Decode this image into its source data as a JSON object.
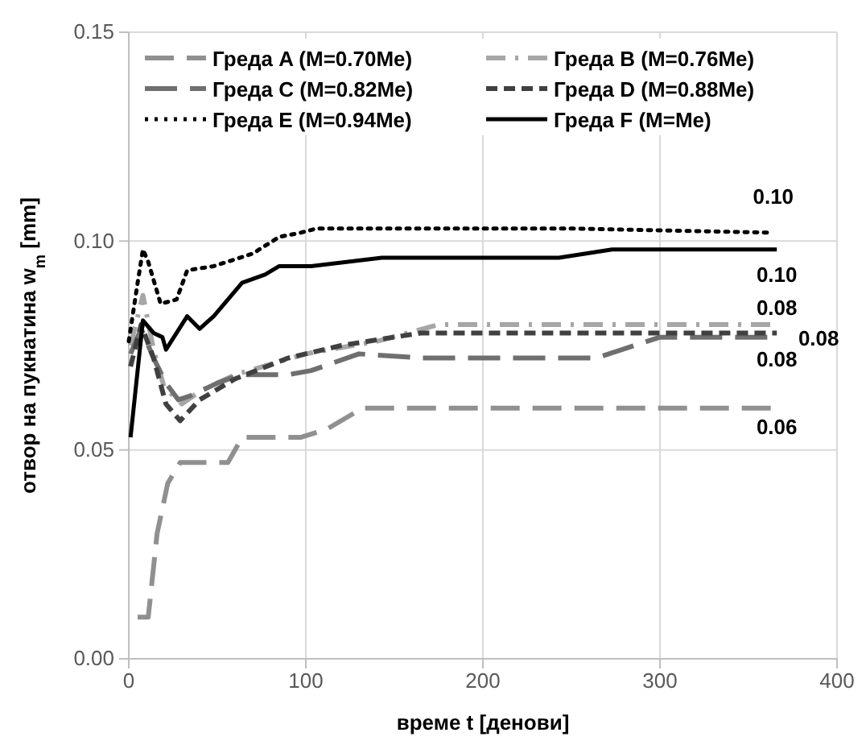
{
  "chart_data": {
    "type": "line",
    "xlabel": "време t [денови]",
    "ylabel": "отвор на пукнатина w$_{m}$ [mm]",
    "xlim": [
      0,
      400
    ],
    "xticks": [
      0,
      100,
      200,
      300,
      400
    ],
    "ylim": [
      0,
      0.15
    ],
    "yticks": [
      {
        "value": 0,
        "label": "0.00"
      },
      {
        "value": 0.05,
        "label": "0.05"
      },
      {
        "value": 0.1,
        "label": "0.10"
      },
      {
        "value": 0.15,
        "label": "0.15"
      }
    ],
    "grid": true,
    "legend": "top",
    "marker": "none",
    "series": [
      {
        "name": "Греда A (M=0.70Me)",
        "color": "#909090",
        "line_style": "dashed",
        "x": [
          5,
          11,
          16,
          22,
          29,
          35,
          56,
          64,
          97,
          112,
          132,
          366
        ],
        "values": [
          0.01,
          0.01,
          0.03,
          0.042,
          0.047,
          0.047,
          0.047,
          0.053,
          0.053,
          0.055,
          0.06,
          0.06
        ],
        "value_labels": [
          null,
          null,
          null,
          null,
          null,
          null,
          null,
          null,
          null,
          null,
          null,
          "0.06"
        ]
      },
      {
        "name": "Греда B (M=0.76Me)",
        "color": "#a6a6a6",
        "line_style": "dashed",
        "x": [
          1,
          8,
          14,
          20,
          30,
          40,
          60,
          100,
          140,
          175,
          366
        ],
        "values": [
          0.075,
          0.087,
          0.074,
          0.065,
          0.061,
          0.064,
          0.068,
          0.073,
          0.076,
          0.08,
          0.08
        ],
        "value_labels": [
          null,
          null,
          null,
          null,
          null,
          null,
          null,
          null,
          null,
          null,
          "0.08"
        ]
      },
      {
        "name": "Греда C (M=0.82Me)",
        "color": "#6f6f6f",
        "line_style": "dashed",
        "x": [
          1,
          7,
          14,
          21,
          28,
          35,
          50,
          63,
          90,
          103,
          130,
          166,
          264,
          300,
          366
        ],
        "values": [
          0.073,
          0.079,
          0.072,
          0.066,
          0.062,
          0.063,
          0.066,
          0.068,
          0.068,
          0.069,
          0.073,
          0.072,
          0.072,
          0.077,
          0.077
        ],
        "value_labels": [
          null,
          null,
          null,
          null,
          null,
          null,
          null,
          null,
          null,
          null,
          null,
          null,
          null,
          null,
          "0.08"
        ]
      },
      {
        "name": "Греда D (M=0.88Me)",
        "color": "#404040",
        "line_style": "dashed",
        "x": [
          1,
          7,
          14,
          21,
          29,
          40,
          60,
          90,
          120,
          165,
          366
        ],
        "values": [
          0.07,
          0.08,
          0.072,
          0.061,
          0.057,
          0.062,
          0.067,
          0.072,
          0.075,
          0.078,
          0.078
        ],
        "value_labels": [
          null,
          null,
          null,
          null,
          null,
          null,
          null,
          null,
          null,
          null,
          "0.08"
        ]
      },
      {
        "name": "Греда E (M=0.94Me)",
        "color": "#000000",
        "line_style": "dotted",
        "x": [
          0,
          5,
          8,
          11,
          18,
          27,
          33,
          48,
          70,
          85,
          97,
          106,
          250,
          364
        ],
        "values": [
          0.076,
          0.09,
          0.098,
          0.095,
          0.085,
          0.086,
          0.093,
          0.094,
          0.097,
          0.101,
          0.102,
          0.103,
          0.103,
          0.102
        ],
        "value_labels": [
          null,
          null,
          null,
          null,
          null,
          null,
          null,
          null,
          null,
          null,
          null,
          null,
          null,
          "0.10"
        ]
      },
      {
        "name": "Греда F (M=Me)",
        "color": "#000000",
        "line_style": "solid",
        "x": [
          1,
          8,
          14,
          19,
          21,
          33,
          40,
          48,
          56,
          64,
          77,
          85,
          103,
          143,
          243,
          273,
          366
        ],
        "values": [
          0.053,
          0.081,
          0.078,
          0.077,
          0.074,
          0.082,
          0.079,
          0.082,
          0.086,
          0.09,
          0.092,
          0.094,
          0.094,
          0.096,
          0.096,
          0.098,
          0.098
        ],
        "value_labels": [
          null,
          null,
          null,
          null,
          null,
          null,
          null,
          null,
          null,
          null,
          null,
          null,
          null,
          null,
          null,
          null,
          "0.10"
        ]
      }
    ]
  }
}
